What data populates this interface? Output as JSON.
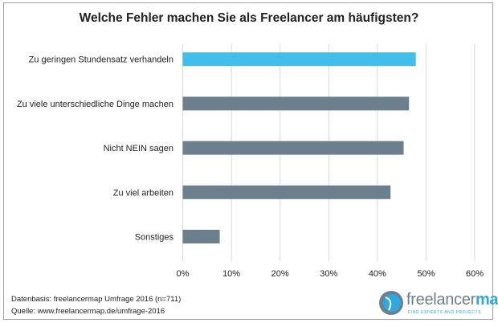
{
  "chart_data": {
    "type": "bar",
    "orientation": "horizontal",
    "title": "Welche Fehler machen Sie als Freelancer am häufigsten?",
    "categories": [
      "Zu geringen Stundensatz verhandeln",
      "Zu viele unterschiedliche Dinge machen",
      "Nicht NEIN sagen",
      "Zu viel arbeiten",
      "Sonstiges"
    ],
    "values": [
      47.9,
      46.5,
      45.4,
      42.7,
      7.6
    ],
    "unit": "%",
    "xlim": [
      0,
      60
    ],
    "ticks": [
      "0%",
      "10%",
      "20%",
      "30%",
      "40%",
      "50%",
      "60%"
    ],
    "grid": true,
    "colors": {
      "highlight": "#41bfea",
      "default": "#6b7f8c",
      "grid": "#d9d9d9"
    },
    "highlight_index": 0
  },
  "footer": {
    "source_basis": "Datenbasis: freelancermap Umfrage 2016 (n=711)",
    "source_url": "Quelle: www.freelancermap.de/umfrage-2016"
  },
  "logo": {
    "text_a": "freelancer",
    "text_b": "map",
    "tagline": "FIND EXPERTS AND PROJECTS"
  }
}
